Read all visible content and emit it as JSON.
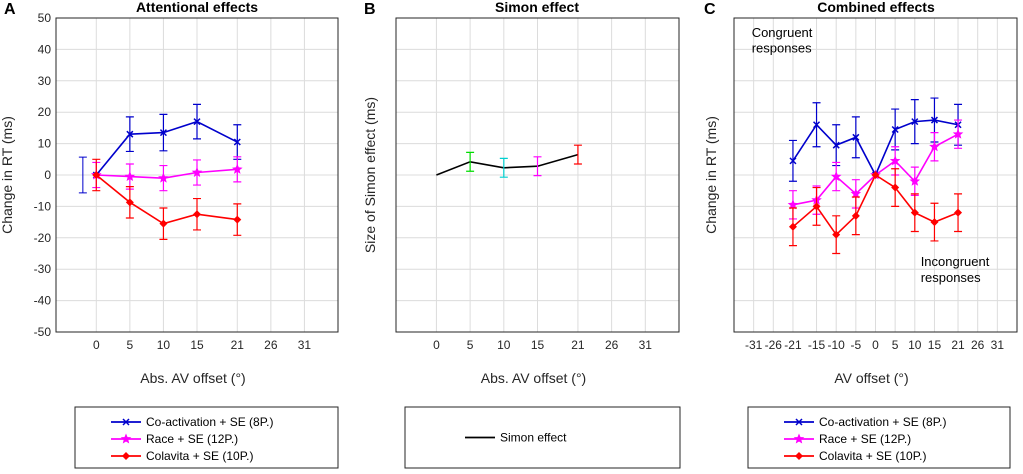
{
  "chart_data": [
    {
      "type": "line",
      "panel_label": "A",
      "title": "Attentional effects",
      "xlabel": "Abs. AV offset (°)",
      "ylabel": "Change in RT (ms)",
      "xlim": [
        -6,
        36
      ],
      "ylim": [
        -50,
        50
      ],
      "xticks": [
        0,
        5,
        10,
        15,
        21,
        26,
        31
      ],
      "yticks": [
        -50,
        -40,
        -30,
        -20,
        -10,
        0,
        10,
        20,
        30,
        40,
        50
      ],
      "grid": true,
      "extra_errorbars": [
        {
          "x": -2,
          "y": 0,
          "err": 5.7,
          "color": "#0000cc"
        }
      ],
      "series": [
        {
          "name": "Co-activation + SE (8P.)",
          "color": "#0000cc",
          "marker": "x",
          "x": [
            0,
            5,
            10,
            15,
            21
          ],
          "y": [
            0,
            13,
            13.5,
            17,
            10.5
          ],
          "err": [
            0,
            5.5,
            5.8,
            5.5,
            5.5
          ]
        },
        {
          "name": "Race  + SE (12P.)",
          "color": "#ff00ff",
          "marker": "star",
          "x": [
            0,
            5,
            10,
            15,
            21
          ],
          "y": [
            0,
            -0.5,
            -1,
            0.8,
            1.8
          ],
          "err": [
            4,
            4,
            4,
            4,
            4
          ]
        },
        {
          "name": "Colavita  + SE (10P.)",
          "color": "#ff0000",
          "marker": "diamond",
          "x": [
            0,
            5,
            10,
            15,
            21
          ],
          "y": [
            0,
            -8.7,
            -15.5,
            -12.5,
            -14.2
          ],
          "err": [
            5,
            5,
            5,
            5,
            5
          ]
        }
      ],
      "legend": "below"
    },
    {
      "type": "line",
      "panel_label": "B",
      "title": "Simon effect",
      "xlabel": "Abs. AV offset (°)",
      "ylabel": "Size of Simon effect (ms)",
      "xlim": [
        -6,
        36
      ],
      "ylim": [
        -50,
        50
      ],
      "xticks": [
        0,
        5,
        10,
        15,
        21,
        26,
        31
      ],
      "yticks": [],
      "grid": true,
      "series": [
        {
          "name": "Simon effect",
          "color": "#000000",
          "marker": "none",
          "x": [
            0,
            5,
            10,
            15,
            21
          ],
          "y": [
            0,
            4.2,
            2.3,
            2.8,
            6.5
          ],
          "err": [
            0,
            3,
            3,
            3,
            3
          ],
          "point_colors": [
            "#000000",
            "#00dd00",
            "#00d0d0",
            "#ff00ff",
            "#ff0000"
          ]
        }
      ],
      "legend": "below"
    },
    {
      "type": "line",
      "panel_label": "C",
      "title": "Combined effects",
      "xlabel": "AV offset (°)",
      "ylabel": "Change in RT (ms)",
      "xlim": [
        -36,
        36
      ],
      "ylim": [
        -50,
        50
      ],
      "xticks": [
        -31,
        -26,
        -21,
        -15,
        -10,
        -5,
        0,
        5,
        10,
        15,
        21,
        26,
        31
      ],
      "yticks": [],
      "grid": true,
      "annotations": [
        {
          "text": "Congruent",
          "x": -31.5,
          "y": 44
        },
        {
          "text": "responses",
          "x": -31.5,
          "y": 39
        },
        {
          "text": "Incongruent",
          "x": 11.5,
          "y": -29
        },
        {
          "text": "responses",
          "x": 11.5,
          "y": -34
        }
      ],
      "series": [
        {
          "name": "Co-activation + SE (8P.)",
          "color": "#0000cc",
          "marker": "x",
          "x": [
            -21,
            -15,
            -10,
            -5,
            0,
            5,
            10,
            15,
            21
          ],
          "y": [
            4.5,
            16,
            9.5,
            12,
            0,
            14.5,
            17,
            17.5,
            16
          ],
          "err": [
            6.5,
            7,
            6.5,
            6.5,
            0,
            6.5,
            7,
            7,
            6.5
          ]
        },
        {
          "name": "Race  + SE (12P.)",
          "color": "#ff00ff",
          "marker": "star",
          "x": [
            -21,
            -15,
            -10,
            -5,
            0,
            5,
            10,
            15,
            21
          ],
          "y": [
            -9.5,
            -8,
            -0.5,
            -6,
            0,
            4.5,
            -2,
            9,
            13
          ],
          "err": [
            4.5,
            4.5,
            4.5,
            4.5,
            0,
            4.5,
            4.5,
            4.5,
            4.5
          ]
        },
        {
          "name": "Colavita  + SE (10P.)",
          "color": "#ff0000",
          "marker": "diamond",
          "x": [
            -21,
            -15,
            -10,
            -5,
            0,
            5,
            10,
            15,
            21
          ],
          "y": [
            -16.5,
            -10,
            -19,
            -13,
            0,
            -4,
            -12,
            -15,
            -12
          ],
          "err": [
            6,
            6,
            6,
            6,
            0,
            6,
            6,
            6,
            6
          ]
        }
      ],
      "legend": "below"
    }
  ]
}
